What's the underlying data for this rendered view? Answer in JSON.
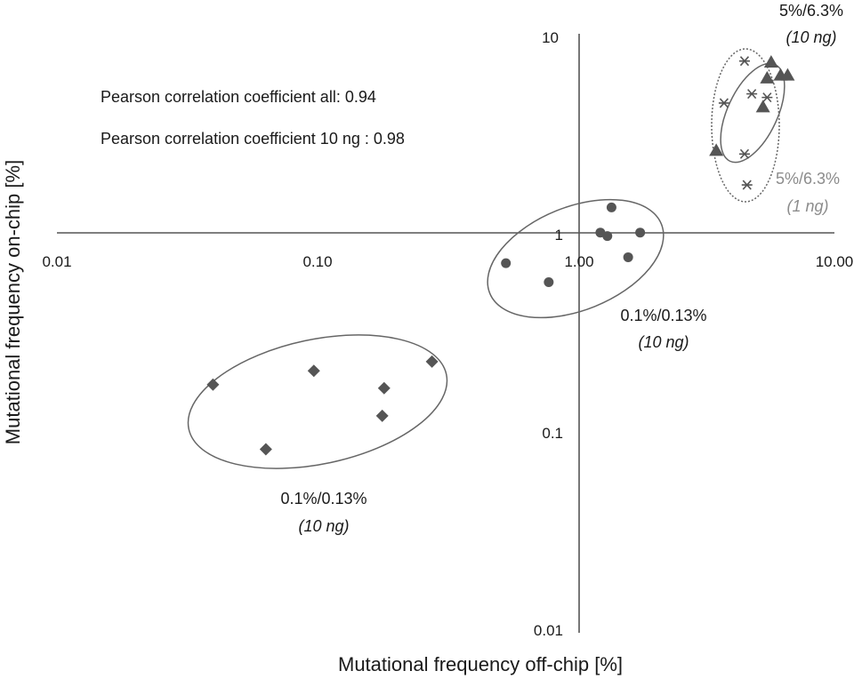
{
  "chart_data": {
    "type": "scatter",
    "title": "",
    "xlabel": "Mutational frequency off-chip [%]",
    "ylabel": "Mutational frequency on-chip [%]",
    "x_scale": "log",
    "y_scale": "log",
    "xlim": [
      0.01,
      10
    ],
    "ylim": [
      0.01,
      10
    ],
    "x_ticks": [
      "0.01",
      "0.10",
      "1.00",
      "10.00"
    ],
    "y_ticks": [
      "10",
      "1",
      "0.1",
      "0.01"
    ],
    "grid": false,
    "legend": "none",
    "colors": {
      "marks": "#555555",
      "ellipse": "#666666",
      "gray_label": "#8c8c8c",
      "axis": "#555555"
    },
    "series": [
      {
        "marker": "diamond",
        "points": [
          [
            0.04,
            0.175
          ],
          [
            0.064,
            0.083
          ],
          [
            0.098,
            0.205
          ],
          [
            0.18,
            0.122
          ],
          [
            0.183,
            0.168
          ],
          [
            0.28,
            0.228
          ]
        ]
      },
      {
        "marker": "circle",
        "points": [
          [
            0.54,
            0.71
          ],
          [
            0.79,
            0.57
          ],
          [
            1.25,
            1.01
          ],
          [
            1.33,
            0.97
          ],
          [
            1.38,
            1.35
          ],
          [
            1.6,
            0.76
          ],
          [
            1.78,
            1.01
          ]
        ]
      },
      {
        "marker": "triangle",
        "points": [
          [
            3.5,
            2.6
          ],
          [
            5.3,
            4.3
          ],
          [
            5.5,
            6.0
          ],
          [
            5.7,
            7.2
          ],
          [
            6.2,
            6.2
          ],
          [
            6.6,
            6.2
          ]
        ]
      },
      {
        "marker": "asterisk",
        "points": [
          [
            3.75,
            4.5
          ],
          [
            4.5,
            7.3
          ],
          [
            4.5,
            2.5
          ],
          [
            4.6,
            1.75
          ],
          [
            4.8,
            5.0
          ],
          [
            5.5,
            4.8
          ]
        ]
      }
    ],
    "stats": [
      "Pearson correlation coefficient all: 0.94",
      "Pearson correlation coefficient 10 ng : 0.98"
    ],
    "annotations": [
      {
        "id": "diamond-group",
        "line1": "0.1%/0.13%",
        "line2": "(10 ng)"
      },
      {
        "id": "circle-group",
        "line1": "0.1%/0.13%",
        "line2": "(10 ng)"
      },
      {
        "id": "triangle-group",
        "line1": "5%/6.3%",
        "line2": "(10 ng)"
      },
      {
        "id": "asterisk-group",
        "line1": "5%/6.3%",
        "line2": "(1 ng)"
      }
    ]
  }
}
